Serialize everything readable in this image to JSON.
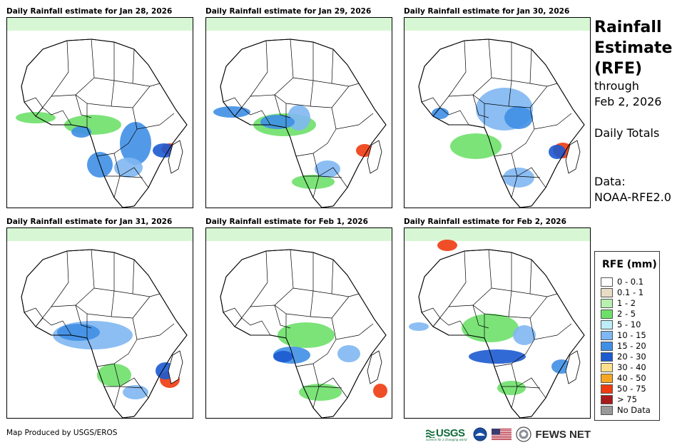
{
  "panels": [
    {
      "title": "Daily Rainfall estimate for Jan 28, 2026"
    },
    {
      "title": "Daily Rainfall estimate for Jan 29, 2026"
    },
    {
      "title": "Daily Rainfall estimate for Jan 30, 2026"
    },
    {
      "title": "Daily Rainfall estimate for Jan 31, 2026"
    },
    {
      "title": "Daily Rainfall estimate for Feb 1, 2026"
    },
    {
      "title": "Daily Rainfall estimate for Feb 2, 2026"
    }
  ],
  "sidebar": {
    "title_line1": "Rainfall",
    "title_line2": "Estimate",
    "title_line3": "(RFE)",
    "through": "through",
    "date": "Feb 2, 2026",
    "totals": "Daily Totals",
    "data_label": "Data:",
    "data_source": "NOAA-RFE2.0"
  },
  "legend": {
    "title": "RFE (mm)",
    "items": [
      {
        "label": "0 - 0.1",
        "color": "#ffffff"
      },
      {
        "label": "0.1 - 1",
        "color": "#e8dcc4"
      },
      {
        "label": "1 - 2",
        "color": "#b7f0b0"
      },
      {
        "label": "2 - 5",
        "color": "#6ee06a"
      },
      {
        "label": "5 - 10",
        "color": "#bdeef8"
      },
      {
        "label": "10 - 15",
        "color": "#7fb7f2"
      },
      {
        "label": "15 - 20",
        "color": "#3f8fe6"
      },
      {
        "label": "20 - 30",
        "color": "#1c5ad0"
      },
      {
        "label": "30 - 40",
        "color": "#ffe08a"
      },
      {
        "label": "40 - 50",
        "color": "#f5a623"
      },
      {
        "label": "50 - 75",
        "color": "#ee3b0f"
      },
      {
        "label": "> 75",
        "color": "#a81b1b"
      },
      {
        "label": "No Data",
        "color": "#999999"
      }
    ]
  },
  "footer": {
    "credit": "Map Produced by USGS/EROS",
    "usgs": "USGS",
    "usgs_tagline": "science for a changing world",
    "fews": "FEWS NET"
  }
}
